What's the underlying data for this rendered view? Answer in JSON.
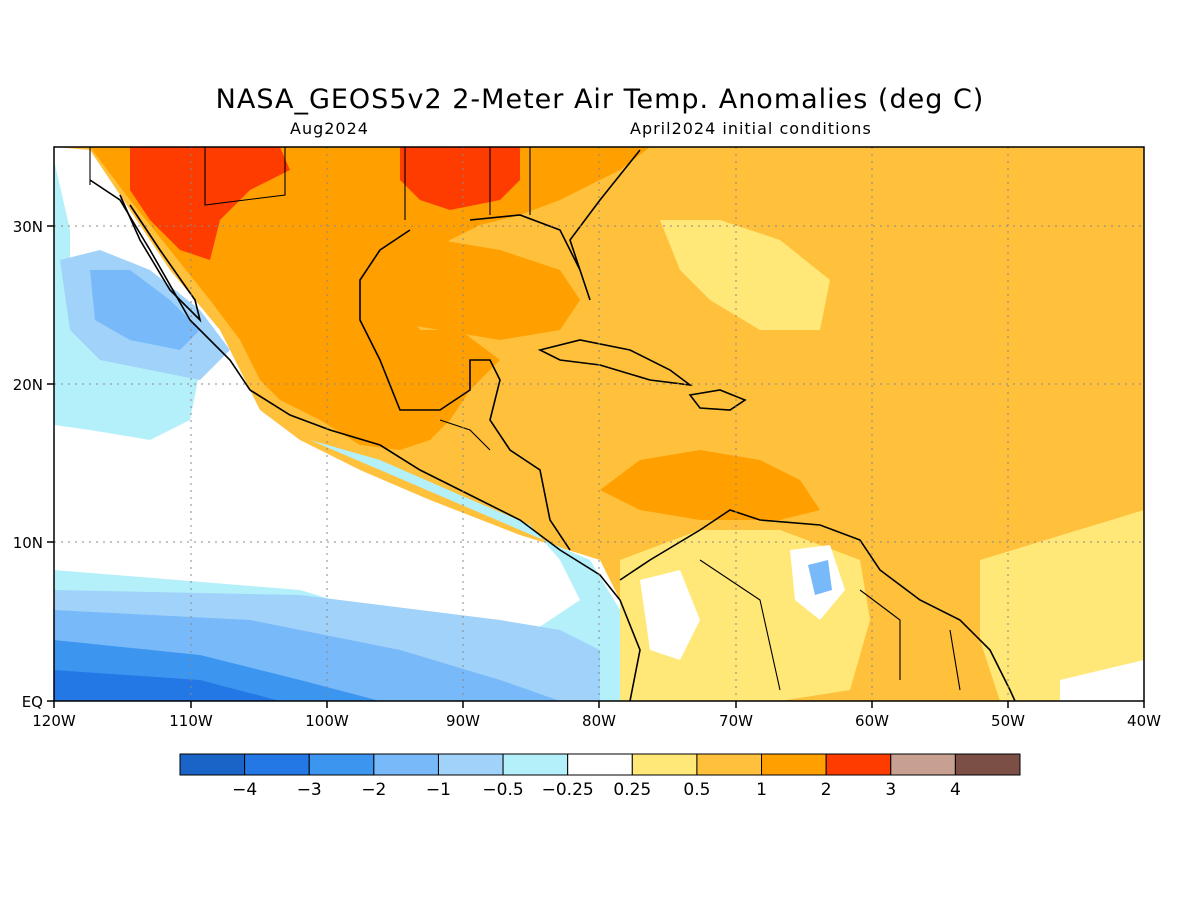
{
  "title": "NASA_GEOS5v2 2-Meter Air Temp. Anomalies (deg C)",
  "subtitle_left": "Aug2024",
  "subtitle_right": "April2024 initial conditions",
  "map": {
    "lon_range": [
      -120,
      -40
    ],
    "lat_range": [
      0,
      35
    ],
    "lon_ticks": [
      "120W",
      "110W",
      "100W",
      "90W",
      "80W",
      "70W",
      "60W",
      "50W",
      "40W"
    ],
    "lat_ticks": [
      "EQ",
      "10N",
      "20N",
      "30N"
    ],
    "grid": "dotted"
  },
  "colorbar": {
    "labels": [
      "-4",
      "-3",
      "-2",
      "-1",
      "-0.5",
      "-0.25",
      "0.25",
      "0.5",
      "1",
      "2",
      "3",
      "4"
    ],
    "colors": [
      "#1a64c8",
      "#2478e6",
      "#3c96f0",
      "#78b9fa",
      "#a0d2fa",
      "#b4f0fa",
      "#ffffff",
      "#ffe878",
      "#ffc03c",
      "#ffa000",
      "#ff3c00",
      "#c8a092",
      "#7b4f45"
    ]
  }
}
